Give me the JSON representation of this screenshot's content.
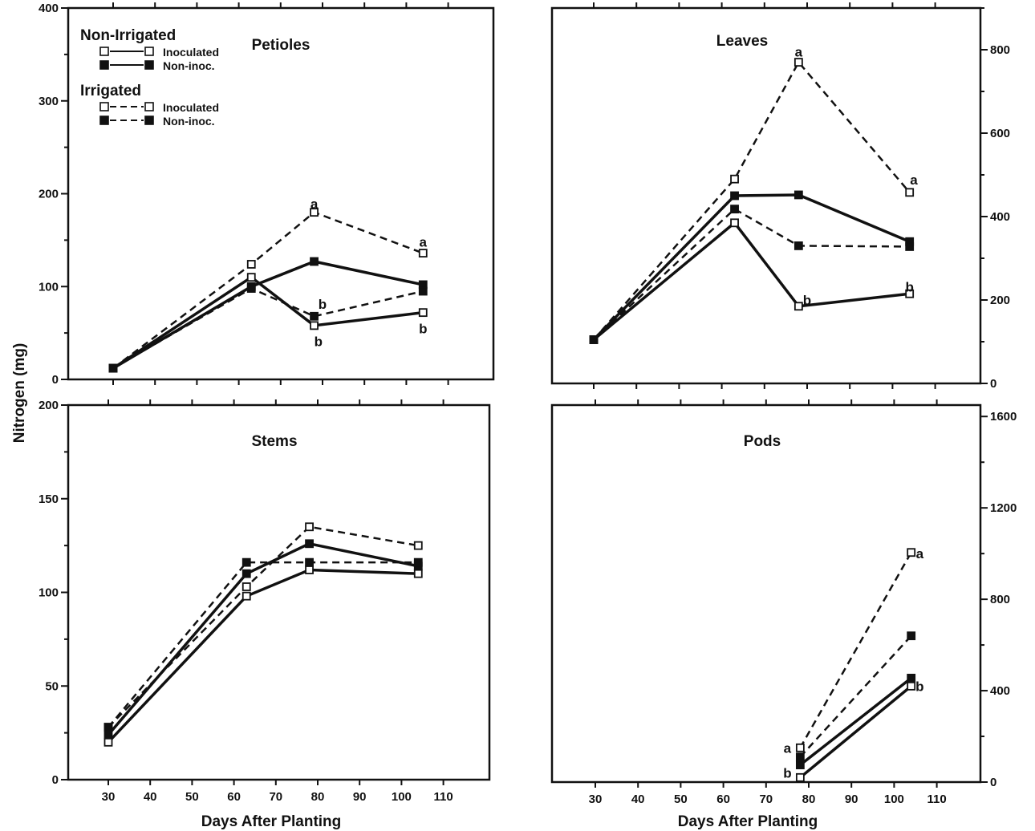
{
  "chart_data": [
    {
      "type": "line",
      "title": "Petioles",
      "ylabel": "",
      "xlabel": "",
      "ylim": [
        0,
        400
      ],
      "y_ticks": [
        0,
        100,
        200,
        300,
        400
      ],
      "x_ticks": [
        30,
        40,
        50,
        60,
        70,
        80,
        90,
        100,
        110
      ],
      "y_axis_side": "left",
      "legend": {
        "placement": "top-left",
        "groups": [
          {
            "heading": "Non-Irrigated",
            "items": [
              {
                "label": "Inoculated",
                "marker": "open-square",
                "line": "solid"
              },
              {
                "label": "Non-inoc.",
                "marker": "filled-square",
                "line": "solid"
              }
            ]
          },
          {
            "heading": "Irrigated",
            "items": [
              {
                "label": "Inoculated",
                "marker": "open-square",
                "line": "dashed"
              },
              {
                "label": "Non-inoc.",
                "marker": "filled-square",
                "line": "dashed"
              }
            ]
          }
        ]
      },
      "x": [
        30,
        63,
        78,
        104
      ],
      "series": [
        {
          "name": "Non-Irrigated Inoculated",
          "style": "solid",
          "marker": "open",
          "values": [
            12,
            110,
            58,
            72
          ]
        },
        {
          "name": "Non-Irrigated Non-inoc.",
          "style": "solid",
          "marker": "filled",
          "values": [
            12,
            100,
            127,
            102
          ]
        },
        {
          "name": "Irrigated Inoculated",
          "style": "dashed",
          "marker": "open",
          "values": [
            12,
            124,
            180,
            136
          ]
        },
        {
          "name": "Irrigated Non-inoc.",
          "style": "dashed",
          "marker": "filled",
          "values": [
            12,
            98,
            68,
            95
          ]
        }
      ],
      "annotations": [
        {
          "text": "a",
          "x": 78,
          "y": 189
        },
        {
          "text": "a",
          "x": 104,
          "y": 148
        },
        {
          "text": "b",
          "x": 80,
          "y": 81
        },
        {
          "text": "b",
          "x": 79,
          "y": 41
        },
        {
          "text": "b",
          "x": 104,
          "y": 55
        }
      ]
    },
    {
      "type": "line",
      "title": "Leaves",
      "ylim": [
        0,
        900
      ],
      "y_ticks": [
        0,
        200,
        400,
        600,
        800
      ],
      "x_ticks": [
        30,
        40,
        50,
        60,
        70,
        80,
        90,
        100,
        110
      ],
      "y_axis_side": "right",
      "x": [
        30,
        63,
        78,
        104
      ],
      "series": [
        {
          "name": "Non-Irrigated Inoculated",
          "style": "solid",
          "marker": "open",
          "values": [
            105,
            385,
            185,
            215
          ]
        },
        {
          "name": "Non-Irrigated Non-inoc.",
          "style": "solid",
          "marker": "filled",
          "values": [
            105,
            450,
            452,
            340
          ]
        },
        {
          "name": "Irrigated Inoculated",
          "style": "dashed",
          "marker": "open",
          "values": [
            105,
            490,
            770,
            458
          ]
        },
        {
          "name": "Irrigated Non-inoc.",
          "style": "dashed",
          "marker": "filled",
          "values": [
            105,
            418,
            330,
            328
          ]
        }
      ],
      "annotations": [
        {
          "text": "a",
          "x": 78,
          "y": 795
        },
        {
          "text": "a",
          "x": 105,
          "y": 488
        },
        {
          "text": "b",
          "x": 80,
          "y": 200
        },
        {
          "text": "b",
          "x": 104,
          "y": 232
        }
      ]
    },
    {
      "type": "line",
      "title": "Stems",
      "ylim": [
        0,
        200
      ],
      "y_ticks": [
        0,
        50,
        100,
        150,
        200
      ],
      "x_ticks": [
        30,
        40,
        50,
        60,
        70,
        80,
        90,
        100,
        110
      ],
      "y_axis_side": "left",
      "x": [
        30,
        63,
        78,
        104
      ],
      "series": [
        {
          "name": "Non-Irrigated Inoculated",
          "style": "solid",
          "marker": "open",
          "values": [
            20,
            98,
            112,
            110
          ]
        },
        {
          "name": "Non-Irrigated Non-inoc.",
          "style": "solid",
          "marker": "filled",
          "values": [
            24,
            110,
            126,
            114
          ]
        },
        {
          "name": "Irrigated Inoculated",
          "style": "dashed",
          "marker": "open",
          "values": [
            28,
            103,
            135,
            125
          ]
        },
        {
          "name": "Irrigated Non-inoc.",
          "style": "dashed",
          "marker": "filled",
          "values": [
            28,
            116,
            116,
            116
          ]
        }
      ],
      "annotations": []
    },
    {
      "type": "line",
      "title": "Pods",
      "ylim": [
        0,
        1650
      ],
      "y_ticks": [
        0,
        400,
        800,
        1200,
        1600
      ],
      "x_ticks": [
        30,
        40,
        50,
        60,
        70,
        80,
        90,
        100,
        110
      ],
      "y_axis_side": "right",
      "x": [
        78,
        104
      ],
      "series": [
        {
          "name": "Non-Irrigated Inoculated",
          "style": "solid",
          "marker": "open",
          "values": [
            20,
            420
          ]
        },
        {
          "name": "Non-Irrigated Non-inoc.",
          "style": "solid",
          "marker": "filled",
          "values": [
            75,
            455
          ]
        },
        {
          "name": "Irrigated Inoculated",
          "style": "dashed",
          "marker": "open",
          "values": [
            150,
            1005
          ]
        },
        {
          "name": "Irrigated Non-inoc.",
          "style": "dashed",
          "marker": "filled",
          "values": [
            110,
            640
          ]
        }
      ],
      "annotations": [
        {
          "text": "a",
          "x": 106,
          "y": 1000
        },
        {
          "text": "a",
          "x": 75,
          "y": 150
        },
        {
          "text": "b",
          "x": 75,
          "y": 40
        },
        {
          "text": "b",
          "x": 106,
          "y": 420
        }
      ]
    }
  ],
  "figure": {
    "ylabel": "Nitrogen (mg)",
    "xlabel": "Days After Planting",
    "colors": {
      "ink": "#111111",
      "background": "#ffffff"
    }
  }
}
